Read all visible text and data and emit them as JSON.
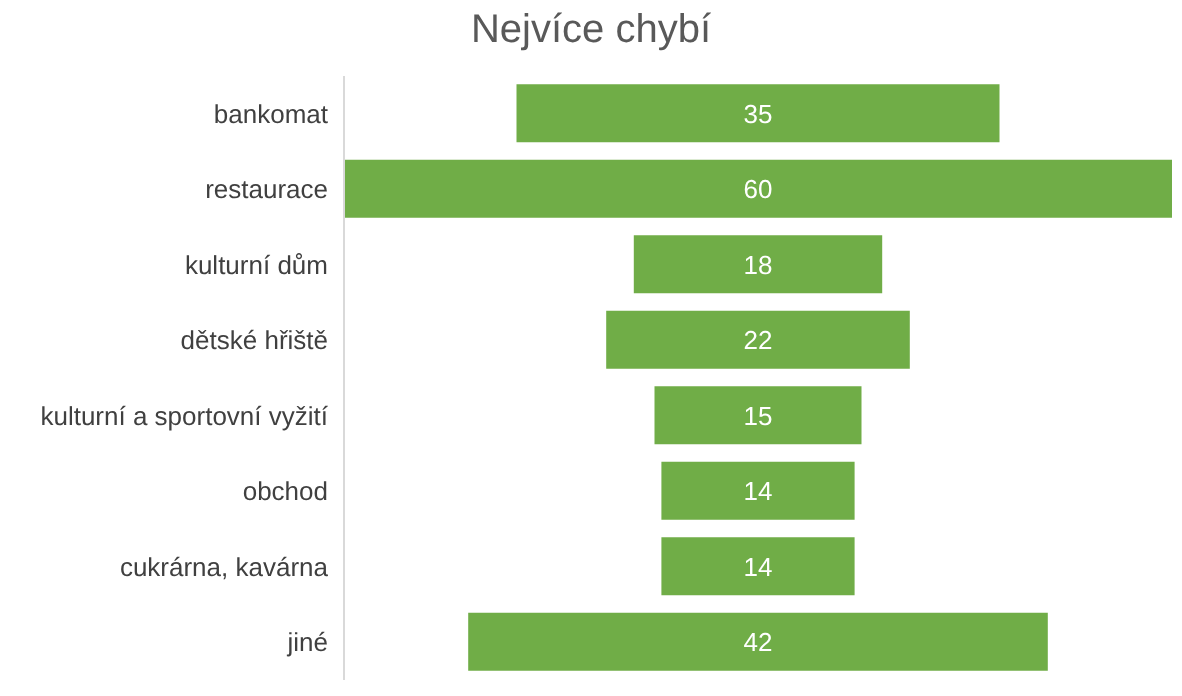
{
  "chart_data": {
    "type": "other",
    "title": "Nejvíce chybí",
    "categories": [
      "bankomat",
      "restaurace",
      "kulturní dům",
      "dětské hřiště",
      "kulturní a sportovní vyžití",
      "obchod",
      "cukrárna, kavárna",
      "jiné"
    ],
    "values": [
      35,
      60,
      18,
      22,
      15,
      14,
      14,
      42
    ],
    "color": "#70ad47",
    "data_labels": true
  }
}
